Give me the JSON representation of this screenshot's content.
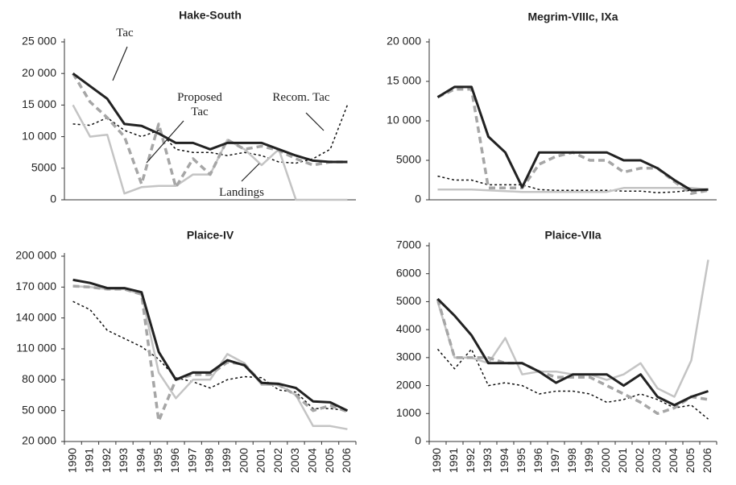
{
  "chart_data": [
    {
      "type": "line",
      "title": "Hake-South",
      "ylim": [
        0,
        25000
      ],
      "yticks": [
        0,
        5000,
        {
          "value": 10000,
          "label": "10 000"
        },
        {
          "value": 15000,
          "label": "15 000"
        },
        {
          "value": 20000,
          "label": "20 000"
        },
        {
          "value": 25000,
          "label": "25 000"
        }
      ],
      "series": [
        {
          "name": "Tac",
          "color": "#222222",
          "line_style": "solid",
          "values": [
            20000,
            18000,
            16000,
            12000,
            11700,
            10500,
            9000,
            9000,
            8000,
            9000,
            9000,
            9000,
            8000,
            7000,
            6200,
            6000,
            6000
          ]
        },
        {
          "name": "Proposed Tac",
          "color": "#a6a6a6",
          "line_style": "dashed",
          "values": [
            20000,
            15500,
            13000,
            10000,
            2500,
            12000,
            2000,
            6500,
            4000,
            9500,
            8000,
            8500,
            7800,
            6500,
            5500,
            6000,
            6000
          ]
        },
        {
          "name": "Recom. Tac",
          "color": "#c4c4c4",
          "line_style": "light",
          "values": [
            15000,
            10000,
            10300,
            1000,
            2000,
            2200,
            2200,
            4000,
            4000,
            9500,
            8000,
            5500,
            8000,
            0,
            0,
            0,
            0
          ]
        },
        {
          "name": "Landings",
          "color": "#111111",
          "line_style": "dotted",
          "values": [
            12000,
            11800,
            13000,
            11000,
            10000,
            11000,
            8000,
            7500,
            7500,
            7000,
            7500,
            7000,
            6000,
            5800,
            6500,
            8000,
            15000
          ]
        }
      ]
    },
    {
      "type": "line",
      "title": "Megrim-VIIIc, IXa",
      "ylim": [
        0,
        20000
      ],
      "yticks": [
        0,
        5000,
        {
          "value": 10000,
          "label": "10 000"
        },
        {
          "value": 15000,
          "label": "15 000"
        },
        {
          "value": 20000,
          "label": "20 000"
        }
      ],
      "series": [
        {
          "color": "#222222",
          "line_style": "solid",
          "values": [
            13000,
            14300,
            14300,
            8000,
            6000,
            1600,
            6000,
            6000,
            6000,
            6000,
            6000,
            5000,
            5000,
            4000,
            2500,
            1200,
            1300
          ]
        },
        {
          "color": "#a6a6a6",
          "line_style": "dashed",
          "values": [
            13000,
            14000,
            14000,
            1500,
            1500,
            1500,
            4500,
            5500,
            6000,
            5000,
            5000,
            3500,
            4000,
            4000,
            2300,
            800,
            1200
          ]
        },
        {
          "color": "#c4c4c4",
          "line_style": "light",
          "values": [
            1300,
            1300,
            1300,
            1200,
            1100,
            1000,
            1000,
            1000,
            1000,
            1000,
            1000,
            1500,
            1500,
            1500,
            1500,
            1500,
            1300
          ]
        },
        {
          "color": "#111111",
          "line_style": "dotted",
          "values": [
            3000,
            2500,
            2500,
            1900,
            1900,
            1900,
            1300,
            1200,
            1200,
            1200,
            1200,
            1100,
            1100,
            900,
            1000,
            1200,
            1300
          ]
        }
      ]
    },
    {
      "type": "line",
      "title": "Plaice-IV",
      "categories": [
        "1990",
        "1991",
        "1992",
        "1993",
        "1994",
        "1995",
        "1996",
        "1997",
        "1998",
        "1999",
        "2000",
        "2001",
        "2002",
        "2003",
        "2004",
        "2005",
        "2006"
      ],
      "ylim": [
        20000,
        200000
      ],
      "yticks": [
        {
          "value": 20000,
          "label": "20 000"
        },
        {
          "value": 50000,
          "label": "50 000"
        },
        {
          "value": 80000,
          "label": "80 000"
        },
        {
          "value": 110000,
          "label": "110 000"
        },
        {
          "value": 140000,
          "label": "140 000"
        },
        {
          "value": 170000,
          "label": "170 000"
        },
        {
          "value": 200000,
          "label": "200 000"
        }
      ],
      "series": [
        {
          "color": "#222222",
          "line_style": "solid",
          "values": [
            177000,
            174000,
            169000,
            169000,
            165000,
            107000,
            80000,
            87000,
            87000,
            99000,
            94000,
            77000,
            76000,
            72000,
            59000,
            58000,
            50000
          ]
        },
        {
          "color": "#a6a6a6",
          "line_style": "dashed",
          "values": [
            171000,
            170000,
            168000,
            168000,
            163000,
            40000,
            80000,
            85000,
            85000,
            97000,
            95000,
            77000,
            75000,
            65000,
            50000,
            55000,
            49000
          ]
        },
        {
          "color": "#c4c4c4",
          "line_style": "light",
          "values": [
            171000,
            170000,
            168000,
            168000,
            163000,
            87000,
            62000,
            80000,
            80000,
            105000,
            96000,
            75000,
            75000,
            65000,
            35000,
            35000,
            32000
          ]
        },
        {
          "color": "#111111",
          "line_style": "dotted",
          "values": [
            156000,
            148000,
            128000,
            120000,
            112000,
            100000,
            82000,
            78000,
            72000,
            80000,
            83000,
            82000,
            70000,
            68000,
            52000,
            52000,
            50000
          ]
        }
      ]
    },
    {
      "type": "line",
      "title": "Plaice-VIIa",
      "categories": [
        "1990",
        "1991",
        "1992",
        "1993",
        "1994",
        "1995",
        "1996",
        "1997",
        "1998",
        "1999",
        "2000",
        "2001",
        "2002",
        "2003",
        "2004",
        "2005",
        "2006"
      ],
      "ylim": [
        0,
        7000
      ],
      "yticks": [
        0,
        1000,
        2000,
        3000,
        4000,
        5000,
        6000,
        7000
      ],
      "series": [
        {
          "color": "#222222",
          "line_style": "solid",
          "values": [
            5100,
            4500,
            3800,
            2800,
            2800,
            2800,
            2500,
            2100,
            2400,
            2400,
            2400,
            2000,
            2400,
            1600,
            1300,
            1600,
            1800
          ]
        },
        {
          "color": "#a6a6a6",
          "line_style": "dashed",
          "values": [
            5100,
            3000,
            3000,
            3000,
            2800,
            2800,
            2500,
            2300,
            2300,
            2300,
            2000,
            1700,
            1400,
            1000,
            1200,
            1600,
            1500
          ]
        },
        {
          "color": "#c4c4c4",
          "line_style": "light",
          "values": [
            5000,
            3000,
            3000,
            2800,
            3700,
            2400,
            2500,
            2500,
            2400,
            2400,
            2200,
            2400,
            2800,
            1900,
            1600,
            2900,
            6500
          ]
        },
        {
          "color": "#111111",
          "line_style": "dotted",
          "values": [
            3300,
            2600,
            3300,
            2000,
            2100,
            2000,
            1700,
            1800,
            1800,
            1700,
            1400,
            1500,
            1700,
            1500,
            1200,
            1300,
            800
          ]
        }
      ]
    }
  ]
}
